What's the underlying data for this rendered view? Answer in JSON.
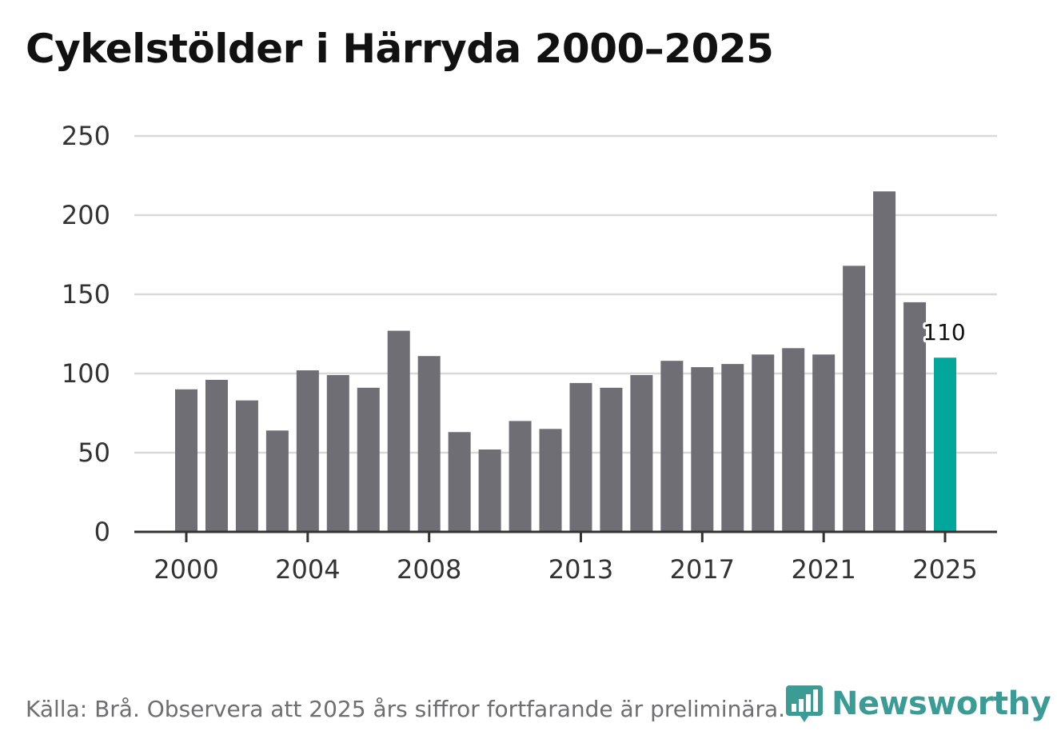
{
  "colors": {
    "bar": "#6f6e74",
    "highlight": "#02a79b",
    "grid": "#d9d9d9",
    "axis": "#333333",
    "brand": "#3a9c95"
  },
  "logo": {
    "text": "Newsworthy",
    "icon": "chart-bubble-icon"
  },
  "chart_data": {
    "type": "bar",
    "title": "Cykelstölder i Härryda 2000–2025",
    "source": "Källa: Brå. Observera att 2025 års siffror fortfarande är preliminära.",
    "xlabel": "",
    "ylabel": "",
    "ylim": [
      0,
      250
    ],
    "yticks": [
      0,
      50,
      100,
      150,
      200,
      250
    ],
    "xticks": [
      "2000",
      "2004",
      "2008",
      "2013",
      "2017",
      "2021",
      "2025"
    ],
    "grid": true,
    "categories": [
      "2000",
      "2001",
      "2002",
      "2003",
      "2004",
      "2005",
      "2006",
      "2007",
      "2008",
      "2009",
      "2010",
      "2011",
      "2012",
      "2013",
      "2014",
      "2015",
      "2016",
      "2017",
      "2018",
      "2019",
      "2020",
      "2021",
      "2022",
      "2023",
      "2024",
      "2025"
    ],
    "values": [
      90,
      96,
      83,
      64,
      102,
      99,
      91,
      127,
      111,
      63,
      52,
      70,
      65,
      94,
      91,
      99,
      108,
      104,
      106,
      112,
      116,
      112,
      168,
      215,
      145,
      110
    ],
    "highlight": "2025",
    "highlight_label": "110"
  }
}
